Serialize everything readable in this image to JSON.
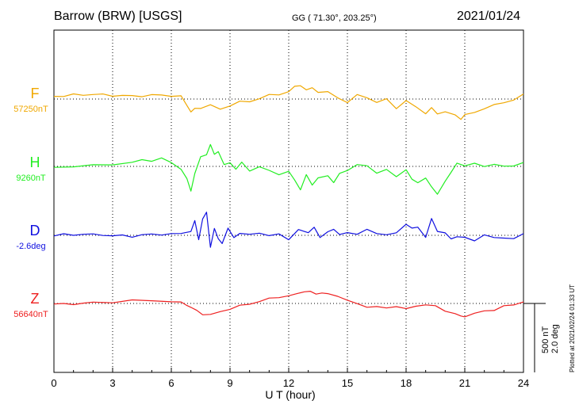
{
  "header": {
    "station": "Barrow (BRW)  [USGS]",
    "coords": "GG ( 71.30°, 203.25°)",
    "date": "2021/01/24"
  },
  "footer": {
    "plotted": "Plotted at 2021/02/24 01:33 UT",
    "scale_nt": "500 nT",
    "scale_deg": "2.0 deg"
  },
  "chart_data": {
    "type": "line",
    "xlabel": "U T (hour)",
    "xlim": [
      0,
      24
    ],
    "xticks": [
      0,
      3,
      6,
      9,
      12,
      15,
      18,
      21,
      24
    ],
    "grid": true,
    "scale_bar": "500 nT / 2.0 deg",
    "series": [
      {
        "name": "F",
        "baseline_label": "57250nT",
        "color": "#f0a800",
        "x": [
          0,
          0.5,
          1,
          1.5,
          2,
          2.5,
          3,
          3.5,
          4,
          4.5,
          5,
          5.5,
          6,
          6.5,
          6.8,
          7,
          7.2,
          7.5,
          8,
          8.5,
          9,
          9.5,
          10,
          10.5,
          11,
          11.5,
          12,
          12.3,
          12.6,
          12.9,
          13.2,
          13.5,
          14,
          14.5,
          15,
          15.5,
          16,
          16.5,
          17,
          17.5,
          18,
          18.5,
          19,
          19.3,
          19.6,
          20,
          20.5,
          20.8,
          21,
          21.5,
          22,
          22.5,
          23,
          23.5,
          24
        ],
        "y": [
          4,
          4,
          5,
          5,
          6,
          6,
          6,
          6,
          6,
          6,
          6,
          6,
          4,
          2,
          -10,
          -20,
          -15,
          -12,
          -8,
          -14,
          -8,
          -4,
          -4,
          0,
          4,
          6,
          10,
          18,
          22,
          14,
          18,
          12,
          10,
          2,
          -6,
          4,
          2,
          -6,
          0,
          -12,
          -2,
          -10,
          -20,
          -14,
          -22,
          -20,
          -26,
          -30,
          -24,
          -20,
          -12,
          -8,
          -4,
          0,
          6
        ]
      },
      {
        "name": "H",
        "baseline_label": "9260nT",
        "color": "#22ee22",
        "x": [
          0,
          1,
          2,
          3,
          4,
          4.5,
          5,
          5.5,
          6,
          6.5,
          6.8,
          7,
          7.2,
          7.5,
          7.8,
          8,
          8.2,
          8.4,
          8.7,
          9,
          9.3,
          9.6,
          10,
          10.5,
          11,
          11.5,
          12,
          12.3,
          12.6,
          12.9,
          13.2,
          13.5,
          14,
          14.3,
          14.6,
          15,
          15.5,
          16,
          16.5,
          17,
          17.5,
          18,
          18.3,
          18.6,
          19,
          19.3,
          19.6,
          20,
          20.3,
          20.6,
          21,
          21.5,
          22,
          22.5,
          23,
          23.5,
          24
        ],
        "y": [
          0,
          0,
          3,
          5,
          6,
          10,
          8,
          10,
          5,
          -5,
          -20,
          -35,
          -10,
          15,
          20,
          32,
          18,
          22,
          0,
          5,
          -5,
          5,
          -5,
          0,
          -5,
          -10,
          -8,
          -20,
          -35,
          -15,
          -28,
          -18,
          -15,
          -22,
          -10,
          -5,
          5,
          0,
          -10,
          -5,
          -18,
          -5,
          -20,
          -25,
          -15,
          -30,
          -40,
          -20,
          -10,
          5,
          0,
          2,
          0,
          2,
          0,
          3,
          6
        ]
      },
      {
        "name": "D",
        "baseline_label": "-2.6deg",
        "color": "#1010e0",
        "x": [
          0,
          0.5,
          1,
          1.5,
          2,
          2.5,
          3,
          3.5,
          4,
          4.5,
          5,
          5.5,
          6,
          6.5,
          7,
          7.2,
          7.4,
          7.6,
          7.8,
          8,
          8.2,
          8.4,
          8.6,
          8.9,
          9.2,
          9.5,
          10,
          10.5,
          11,
          11.5,
          12,
          12.5,
          13,
          13.3,
          13.6,
          14,
          14.3,
          14.6,
          15,
          15.5,
          16,
          16.5,
          17,
          17.5,
          18,
          18.3,
          18.6,
          19,
          19.3,
          19.6,
          20,
          20.3,
          20.6,
          21,
          21.5,
          22,
          22.5,
          23,
          23.5,
          24
        ],
        "y": [
          0,
          0,
          -1,
          1,
          0,
          1,
          0,
          1,
          0,
          1,
          2,
          1,
          0,
          2,
          5,
          20,
          -5,
          25,
          35,
          -15,
          10,
          -5,
          -12,
          8,
          -4,
          2,
          0,
          5,
          0,
          3,
          -4,
          8,
          4,
          12,
          -6,
          5,
          8,
          0,
          6,
          2,
          10,
          5,
          0,
          4,
          16,
          8,
          12,
          -4,
          24,
          8,
          4,
          -4,
          0,
          -4,
          -8,
          0,
          -6,
          -4,
          -6,
          2
        ]
      },
      {
        "name": "Z",
        "baseline_label": "56640nT",
        "color": "#ee2020",
        "x": [
          0,
          0.5,
          1,
          1.5,
          2,
          3,
          4,
          5,
          6,
          6.5,
          6.8,
          7,
          7.3,
          7.6,
          8,
          8.5,
          9,
          9.5,
          10,
          10.5,
          11,
          11.5,
          12,
          12.4,
          12.8,
          13.1,
          13.4,
          13.7,
          14,
          14.5,
          15,
          15.5,
          16,
          16.5,
          17,
          17.5,
          18,
          18.5,
          19,
          19.5,
          20,
          20.5,
          20.8,
          21,
          21.5,
          22,
          22.5,
          23,
          23.5,
          24
        ],
        "y": [
          0,
          0,
          1,
          1,
          2,
          2,
          3,
          3,
          2,
          0,
          -2,
          -5,
          -10,
          -14,
          -16,
          -12,
          -8,
          -5,
          -2,
          2,
          6,
          10,
          12,
          15,
          20,
          18,
          14,
          16,
          12,
          10,
          4,
          -2,
          -4,
          -4,
          -6,
          -2,
          -8,
          -4,
          -2,
          -6,
          -12,
          -16,
          -20,
          -18,
          -14,
          -10,
          -8,
          -4,
          -2,
          2
        ]
      }
    ]
  }
}
